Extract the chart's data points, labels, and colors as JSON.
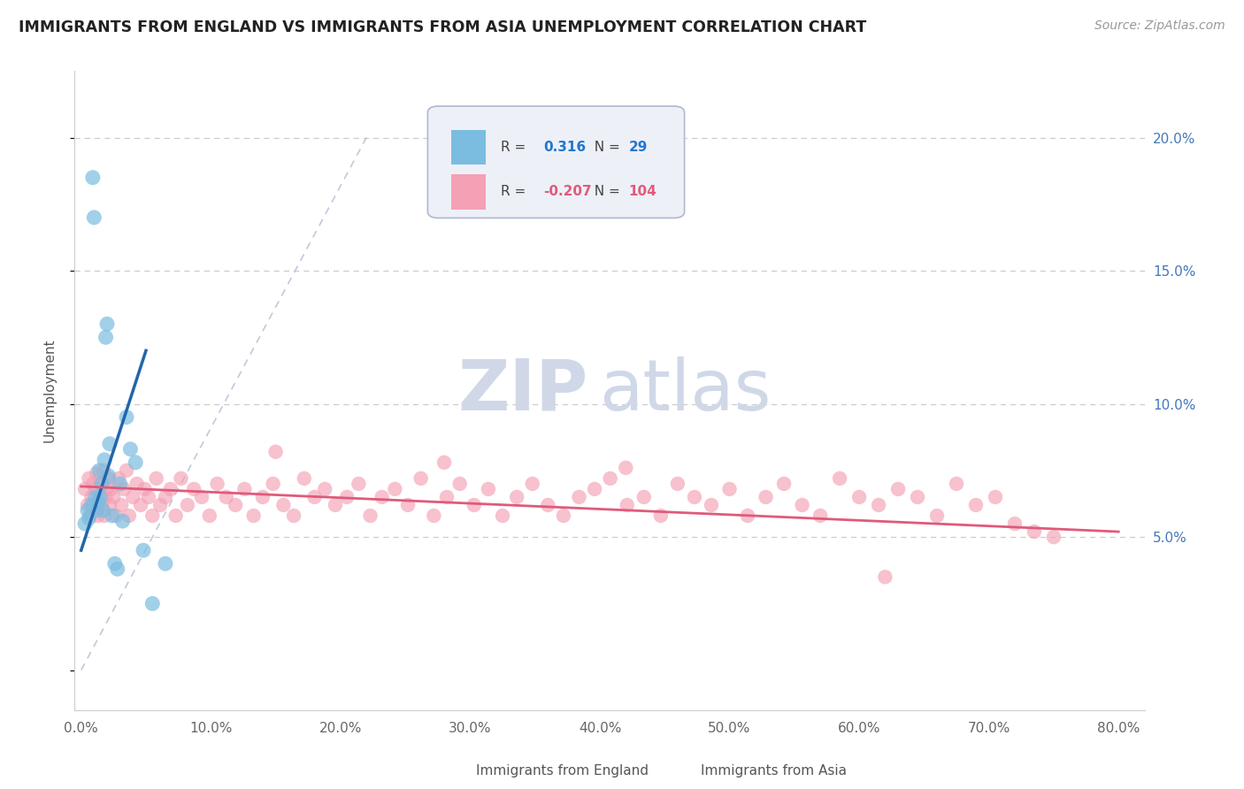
{
  "title": "IMMIGRANTS FROM ENGLAND VS IMMIGRANTS FROM ASIA UNEMPLOYMENT CORRELATION CHART",
  "source": "Source: ZipAtlas.com",
  "ylabel": "Unemployment",
  "y_ticks": [
    0.0,
    0.05,
    0.1,
    0.15,
    0.2
  ],
  "y_tick_labels": [
    "",
    "5.0%",
    "10.0%",
    "15.0%",
    "20.0%"
  ],
  "x_ticks": [
    0.0,
    0.1,
    0.2,
    0.3,
    0.4,
    0.5,
    0.6,
    0.7,
    0.8
  ],
  "x_tick_labels": [
    "0.0%",
    "10.0%",
    "20.0%",
    "30.0%",
    "40.0%",
    "50.0%",
    "60.0%",
    "70.0%",
    "80.0%"
  ],
  "xlim": [
    -0.005,
    0.82
  ],
  "ylim": [
    -0.015,
    0.225
  ],
  "england_R": 0.316,
  "england_N": 29,
  "asia_R": -0.207,
  "asia_N": 104,
  "england_color": "#7bbde0",
  "asia_color": "#f4a0b5",
  "england_line_color": "#2166ac",
  "asia_line_color": "#e05a7a",
  "ref_line_color": "#b8c4d8",
  "watermark_zip": "ZIP",
  "watermark_atlas": "atlas",
  "watermark_color": "#d0d8e8",
  "legend_box_color": "#eef0f8",
  "legend_border_color": "#b0b8d0",
  "england_x": [
    0.003,
    0.005,
    0.006,
    0.008,
    0.009,
    0.01,
    0.011,
    0.012,
    0.013,
    0.014,
    0.015,
    0.016,
    0.017,
    0.018,
    0.019,
    0.02,
    0.021,
    0.022,
    0.024,
    0.026,
    0.028,
    0.03,
    0.032,
    0.035,
    0.038,
    0.042,
    0.048,
    0.055,
    0.065
  ],
  "england_y": [
    0.055,
    0.06,
    0.057,
    0.062,
    0.185,
    0.17,
    0.065,
    0.06,
    0.063,
    0.075,
    0.065,
    0.07,
    0.06,
    0.079,
    0.125,
    0.13,
    0.073,
    0.085,
    0.058,
    0.04,
    0.038,
    0.07,
    0.056,
    0.095,
    0.083,
    0.078,
    0.045,
    0.025,
    0.04
  ],
  "asia_x": [
    0.003,
    0.005,
    0.006,
    0.007,
    0.008,
    0.009,
    0.01,
    0.011,
    0.012,
    0.013,
    0.014,
    0.015,
    0.016,
    0.017,
    0.018,
    0.019,
    0.02,
    0.021,
    0.022,
    0.023,
    0.025,
    0.027,
    0.029,
    0.031,
    0.033,
    0.035,
    0.037,
    0.04,
    0.043,
    0.046,
    0.049,
    0.052,
    0.055,
    0.058,
    0.061,
    0.065,
    0.069,
    0.073,
    0.077,
    0.082,
    0.087,
    0.093,
    0.099,
    0.105,
    0.112,
    0.119,
    0.126,
    0.133,
    0.14,
    0.148,
    0.156,
    0.164,
    0.172,
    0.18,
    0.188,
    0.196,
    0.205,
    0.214,
    0.223,
    0.232,
    0.242,
    0.252,
    0.262,
    0.272,
    0.282,
    0.292,
    0.303,
    0.314,
    0.325,
    0.336,
    0.348,
    0.36,
    0.372,
    0.384,
    0.396,
    0.408,
    0.421,
    0.434,
    0.447,
    0.46,
    0.473,
    0.486,
    0.5,
    0.514,
    0.528,
    0.542,
    0.556,
    0.57,
    0.585,
    0.6,
    0.615,
    0.63,
    0.645,
    0.66,
    0.675,
    0.69,
    0.705,
    0.72,
    0.735,
    0.75,
    0.15,
    0.28,
    0.42,
    0.62
  ],
  "asia_y": [
    0.068,
    0.062,
    0.072,
    0.058,
    0.065,
    0.07,
    0.062,
    0.068,
    0.074,
    0.058,
    0.065,
    0.07,
    0.062,
    0.075,
    0.058,
    0.065,
    0.068,
    0.072,
    0.062,
    0.068,
    0.065,
    0.058,
    0.072,
    0.062,
    0.068,
    0.075,
    0.058,
    0.065,
    0.07,
    0.062,
    0.068,
    0.065,
    0.058,
    0.072,
    0.062,
    0.065,
    0.068,
    0.058,
    0.072,
    0.062,
    0.068,
    0.065,
    0.058,
    0.07,
    0.065,
    0.062,
    0.068,
    0.058,
    0.065,
    0.07,
    0.062,
    0.058,
    0.072,
    0.065,
    0.068,
    0.062,
    0.065,
    0.07,
    0.058,
    0.065,
    0.068,
    0.062,
    0.072,
    0.058,
    0.065,
    0.07,
    0.062,
    0.068,
    0.058,
    0.065,
    0.07,
    0.062,
    0.058,
    0.065,
    0.068,
    0.072,
    0.062,
    0.065,
    0.058,
    0.07,
    0.065,
    0.062,
    0.068,
    0.058,
    0.065,
    0.07,
    0.062,
    0.058,
    0.072,
    0.065,
    0.062,
    0.068,
    0.065,
    0.058,
    0.07,
    0.062,
    0.065,
    0.055,
    0.052,
    0.05,
    0.082,
    0.078,
    0.076,
    0.035
  ]
}
